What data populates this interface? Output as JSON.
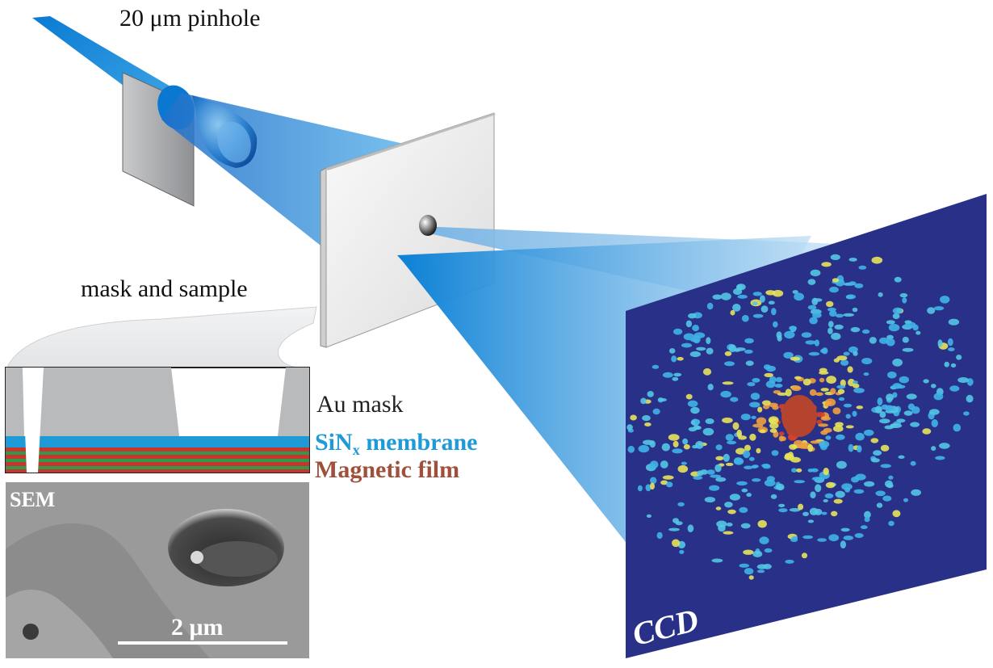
{
  "labels": {
    "pinhole": "20 μm pinhole",
    "mask_and_sample": "mask and sample",
    "au_mask": "Au mask",
    "sinx_base": "SiN",
    "sinx_sub": "x",
    "sinx_rest": " membrane",
    "magnetic_film": "Magnetic film",
    "sem": "SEM",
    "scale_bar": "2 μm",
    "ccd": "CCD"
  },
  "colors": {
    "beam": "#1a8fd6",
    "sinx": "#1e9ad6",
    "magnetic": "#a0503a",
    "film_red": "#c8352e",
    "film_green": "#2f9a4a",
    "au_gray": "#b9babc",
    "ccd_bg": "#2a2f7c"
  },
  "icons": [
    "x-ray-beam",
    "pinhole-plate",
    "sample-plate",
    "ccd-detector",
    "diffraction-pattern",
    "sem-micrograph"
  ]
}
